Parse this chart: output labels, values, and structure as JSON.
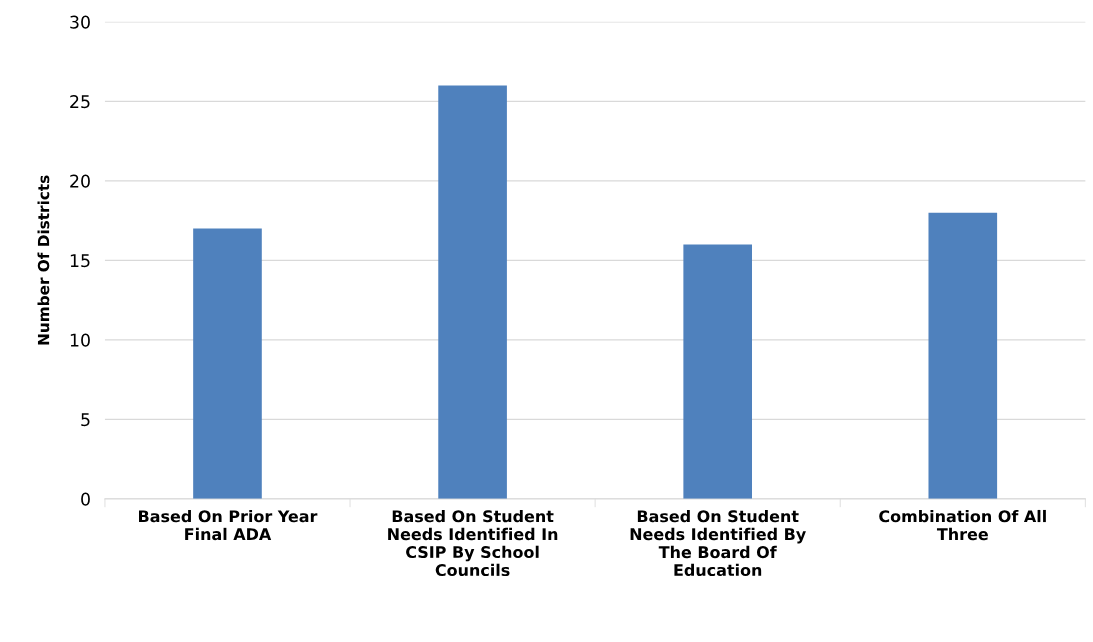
{
  "chart_data": {
    "type": "bar",
    "ylabel": "Number Of Districts",
    "categories": [
      "Based On Prior Year\nFinal ADA",
      "Based On Student\nNeeds Identified In\nCSIP By School\nCouncils",
      "Based On Student\nNeeds Identified By\nThe Board Of\nEducation",
      "Combination Of All\nThree"
    ],
    "values": [
      17,
      26,
      16,
      18
    ],
    "color": "#4f81bd",
    "ylim": [
      0,
      30
    ],
    "yticks": [
      0,
      5,
      10,
      15,
      20,
      25,
      30
    ],
    "grid": "y",
    "legend": false
  }
}
